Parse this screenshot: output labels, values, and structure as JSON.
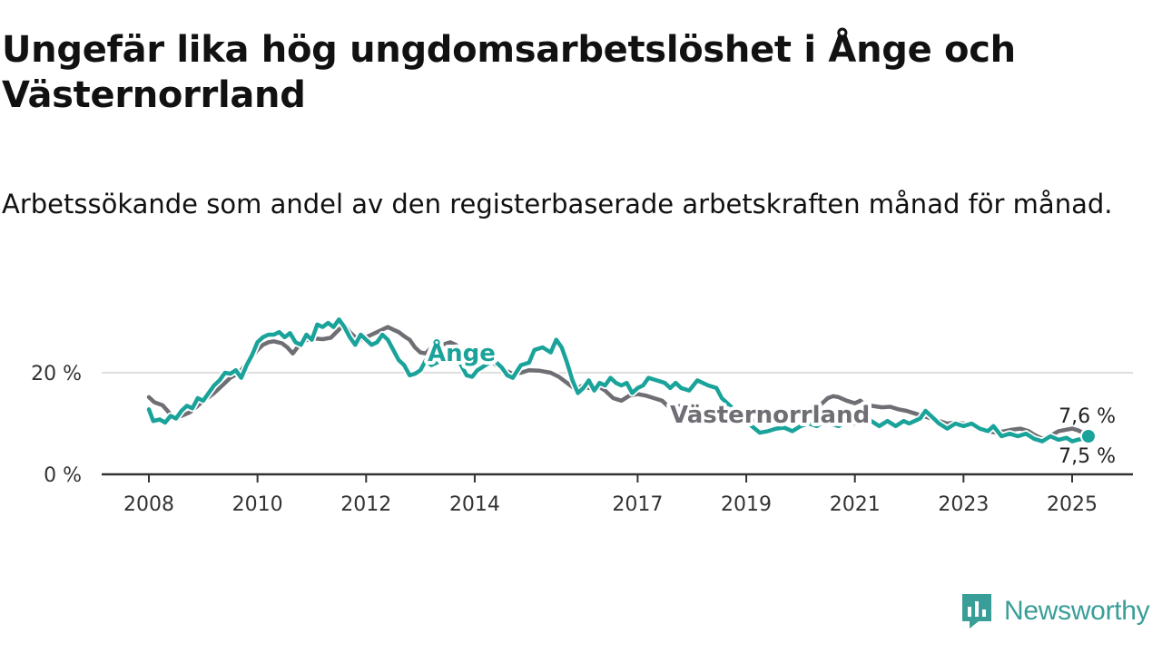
{
  "title": "Ungefär lika hög ungdomsarbetslöshet i Ånge och Västernorrland",
  "subtitle": "Arbetssökande som andel av den registerbaserade arbetskraften månad för månad.",
  "brand": {
    "name": "Newsworthy",
    "icon": "newsworthy-logo-icon",
    "color": "#3a9e98"
  },
  "chart_data": {
    "type": "line",
    "x_unit": "year",
    "y_unit": "%",
    "ylim": [
      0,
      30
    ],
    "y_ticks": [
      {
        "value": 0,
        "label": "0 %"
      },
      {
        "value": 20,
        "label": "20 %"
      }
    ],
    "x_ticks": [
      {
        "value": 2008,
        "label": "2008"
      },
      {
        "value": 2010,
        "label": "2010"
      },
      {
        "value": 2012,
        "label": "2012"
      },
      {
        "value": 2014,
        "label": "2014"
      },
      {
        "value": 2017,
        "label": "2017"
      },
      {
        "value": 2019,
        "label": "2019"
      },
      {
        "value": 2021,
        "label": "2021"
      },
      {
        "value": 2023,
        "label": "2023"
      },
      {
        "value": 2025,
        "label": "2025"
      }
    ],
    "grid": "horizontal",
    "series": [
      {
        "name": "Västernorrland",
        "color": "#6e6e74",
        "end_label": "7,6 %",
        "points": [
          [
            2008.0,
            15.2
          ],
          [
            2008.1,
            14.2
          ],
          [
            2008.25,
            13.6
          ],
          [
            2008.4,
            11.8
          ],
          [
            2008.5,
            11.2
          ],
          [
            2008.6,
            11.5
          ],
          [
            2008.75,
            12.2
          ],
          [
            2008.9,
            13.5
          ],
          [
            2009.0,
            14.5
          ],
          [
            2009.1,
            15.2
          ],
          [
            2009.2,
            16.0
          ],
          [
            2009.3,
            17.0
          ],
          [
            2009.4,
            18.0
          ],
          [
            2009.5,
            19.0
          ],
          [
            2009.6,
            19.6
          ],
          [
            2009.7,
            20.5
          ],
          [
            2009.85,
            22.5
          ],
          [
            2010.0,
            24.5
          ],
          [
            2010.1,
            25.5
          ],
          [
            2010.2,
            26.0
          ],
          [
            2010.3,
            26.2
          ],
          [
            2010.45,
            25.8
          ],
          [
            2010.55,
            25.0
          ],
          [
            2010.65,
            23.8
          ],
          [
            2010.75,
            25.2
          ],
          [
            2010.85,
            26.2
          ],
          [
            2011.0,
            26.8
          ],
          [
            2011.2,
            26.6
          ],
          [
            2011.35,
            26.9
          ],
          [
            2011.5,
            28.5
          ],
          [
            2011.6,
            29.5
          ],
          [
            2011.7,
            28.0
          ],
          [
            2011.8,
            27.0
          ],
          [
            2011.9,
            26.5
          ],
          [
            2012.0,
            27.0
          ],
          [
            2012.1,
            27.5
          ],
          [
            2012.2,
            28.0
          ],
          [
            2012.3,
            28.5
          ],
          [
            2012.4,
            29.0
          ],
          [
            2012.5,
            28.5
          ],
          [
            2012.6,
            28.0
          ],
          [
            2012.7,
            27.2
          ],
          [
            2012.8,
            26.5
          ],
          [
            2012.9,
            25.0
          ],
          [
            2013.0,
            24.0
          ],
          [
            2013.1,
            23.8
          ],
          [
            2013.2,
            25.0
          ],
          [
            2013.4,
            25.5
          ],
          [
            2013.55,
            26.0
          ],
          [
            2013.65,
            25.5
          ],
          [
            2013.75,
            24.5
          ],
          [
            2013.9,
            24.0
          ],
          [
            2014.1,
            23.5
          ],
          [
            2014.25,
            22.5
          ],
          [
            2014.4,
            21.5
          ],
          [
            2014.55,
            20.5
          ],
          [
            2014.7,
            19.8
          ],
          [
            2014.85,
            20.0
          ],
          [
            2015.0,
            20.5
          ],
          [
            2015.2,
            20.4
          ],
          [
            2015.4,
            20.0
          ],
          [
            2015.55,
            19.2
          ],
          [
            2015.7,
            18.0
          ],
          [
            2015.85,
            16.8
          ],
          [
            2016.0,
            17.5
          ],
          [
            2016.1,
            17.0
          ],
          [
            2016.25,
            17.5
          ],
          [
            2016.4,
            16.5
          ],
          [
            2016.55,
            15.0
          ],
          [
            2016.7,
            14.5
          ],
          [
            2016.85,
            15.5
          ],
          [
            2017.0,
            15.8
          ],
          [
            2017.15,
            15.5
          ],
          [
            2017.3,
            15.0
          ],
          [
            2017.45,
            14.5
          ],
          [
            2017.55,
            13.5
          ],
          [
            2017.65,
            13.2
          ],
          [
            2017.8,
            13.5
          ],
          [
            2017.95,
            13.0
          ],
          [
            2018.1,
            12.7
          ],
          [
            2018.25,
            12.3
          ],
          [
            2018.4,
            11.8
          ],
          [
            2018.55,
            11.5
          ],
          [
            2018.7,
            11.8
          ],
          [
            2018.85,
            11.4
          ],
          [
            2019.0,
            11.0
          ],
          [
            2019.2,
            10.5
          ],
          [
            2019.35,
            10.0
          ],
          [
            2019.5,
            10.2
          ],
          [
            2019.65,
            9.8
          ],
          [
            2019.8,
            10.6
          ],
          [
            2019.95,
            11.4
          ],
          [
            2020.1,
            12.2
          ],
          [
            2020.25,
            13.0
          ],
          [
            2020.4,
            14.0
          ],
          [
            2020.5,
            15.0
          ],
          [
            2020.6,
            15.4
          ],
          [
            2020.7,
            15.2
          ],
          [
            2020.85,
            14.5
          ],
          [
            2021.0,
            14.0
          ],
          [
            2021.1,
            14.5
          ],
          [
            2021.2,
            13.5
          ],
          [
            2021.3,
            13.5
          ],
          [
            2021.5,
            13.2
          ],
          [
            2021.65,
            13.3
          ],
          [
            2021.8,
            12.8
          ],
          [
            2021.95,
            12.5
          ],
          [
            2022.1,
            12.0
          ],
          [
            2022.25,
            11.5
          ],
          [
            2022.4,
            11.0
          ],
          [
            2022.55,
            10.5
          ],
          [
            2022.7,
            10.0
          ],
          [
            2022.85,
            10.2
          ],
          [
            2023.0,
            10.0
          ],
          [
            2023.15,
            9.8
          ],
          [
            2023.3,
            9.3
          ],
          [
            2023.45,
            8.5
          ],
          [
            2023.6,
            8.2
          ],
          [
            2023.75,
            8.5
          ],
          [
            2023.9,
            8.8
          ],
          [
            2024.05,
            9.0
          ],
          [
            2024.2,
            8.5
          ],
          [
            2024.3,
            7.8
          ],
          [
            2024.45,
            7.0
          ],
          [
            2024.6,
            7.6
          ],
          [
            2024.75,
            8.5
          ],
          [
            2024.9,
            8.8
          ],
          [
            2025.0,
            9.0
          ],
          [
            2025.1,
            8.7
          ],
          [
            2025.2,
            8.2
          ],
          [
            2025.3,
            7.6
          ]
        ]
      },
      {
        "name": "Ånge",
        "color": "#1aa39a",
        "end_label": "7,5 %",
        "points": [
          [
            2008.0,
            12.8
          ],
          [
            2008.08,
            10.5
          ],
          [
            2008.2,
            10.8
          ],
          [
            2008.3,
            10.2
          ],
          [
            2008.4,
            11.5
          ],
          [
            2008.5,
            11.0
          ],
          [
            2008.6,
            12.5
          ],
          [
            2008.7,
            13.5
          ],
          [
            2008.8,
            13.0
          ],
          [
            2008.9,
            15.0
          ],
          [
            2009.0,
            14.5
          ],
          [
            2009.1,
            16.0
          ],
          [
            2009.2,
            17.5
          ],
          [
            2009.3,
            18.5
          ],
          [
            2009.4,
            20.0
          ],
          [
            2009.5,
            19.8
          ],
          [
            2009.6,
            20.5
          ],
          [
            2009.7,
            19.0
          ],
          [
            2009.8,
            21.5
          ],
          [
            2009.9,
            23.5
          ],
          [
            2010.0,
            26.0
          ],
          [
            2010.1,
            27.0
          ],
          [
            2010.2,
            27.5
          ],
          [
            2010.3,
            27.5
          ],
          [
            2010.4,
            28.0
          ],
          [
            2010.5,
            27.0
          ],
          [
            2010.6,
            27.8
          ],
          [
            2010.7,
            26.0
          ],
          [
            2010.8,
            25.5
          ],
          [
            2010.9,
            27.5
          ],
          [
            2011.0,
            26.5
          ],
          [
            2011.1,
            29.5
          ],
          [
            2011.2,
            29.0
          ],
          [
            2011.3,
            29.8
          ],
          [
            2011.4,
            29.0
          ],
          [
            2011.5,
            30.5
          ],
          [
            2011.6,
            29.0
          ],
          [
            2011.7,
            27.0
          ],
          [
            2011.8,
            25.5
          ],
          [
            2011.9,
            27.5
          ],
          [
            2012.0,
            26.5
          ],
          [
            2012.1,
            25.5
          ],
          [
            2012.2,
            26.0
          ],
          [
            2012.3,
            27.5
          ],
          [
            2012.4,
            26.5
          ],
          [
            2012.5,
            24.5
          ],
          [
            2012.6,
            22.5
          ],
          [
            2012.7,
            21.5
          ],
          [
            2012.8,
            19.5
          ],
          [
            2012.9,
            19.8
          ],
          [
            2013.0,
            20.5
          ],
          [
            2013.1,
            22.5
          ],
          [
            2013.2,
            21.5
          ],
          [
            2013.3,
            22.0
          ],
          [
            2013.45,
            22.5
          ],
          [
            2013.55,
            23.2
          ],
          [
            2013.7,
            22.5
          ],
          [
            2013.85,
            19.5
          ],
          [
            2013.95,
            19.2
          ],
          [
            2014.05,
            20.5
          ],
          [
            2014.2,
            21.5
          ],
          [
            2014.35,
            22.5
          ],
          [
            2014.5,
            21.0
          ],
          [
            2014.6,
            19.5
          ],
          [
            2014.7,
            19.0
          ],
          [
            2014.85,
            21.5
          ],
          [
            2015.0,
            22.0
          ],
          [
            2015.1,
            24.5
          ],
          [
            2015.25,
            25.0
          ],
          [
            2015.4,
            24.0
          ],
          [
            2015.5,
            26.5
          ],
          [
            2015.6,
            25.0
          ],
          [
            2015.7,
            22.0
          ],
          [
            2015.8,
            18.5
          ],
          [
            2015.9,
            16.0
          ],
          [
            2016.0,
            17.0
          ],
          [
            2016.1,
            18.5
          ],
          [
            2016.2,
            16.5
          ],
          [
            2016.3,
            18.0
          ],
          [
            2016.4,
            17.5
          ],
          [
            2016.5,
            19.0
          ],
          [
            2016.6,
            18.0
          ],
          [
            2016.7,
            17.5
          ],
          [
            2016.8,
            18.0
          ],
          [
            2016.9,
            16.0
          ],
          [
            2017.0,
            17.0
          ],
          [
            2017.1,
            17.5
          ],
          [
            2017.2,
            19.0
          ],
          [
            2017.35,
            18.5
          ],
          [
            2017.5,
            18.0
          ],
          [
            2017.6,
            17.0
          ],
          [
            2017.7,
            18.0
          ],
          [
            2017.8,
            17.0
          ],
          [
            2017.95,
            16.5
          ],
          [
            2018.1,
            18.5
          ],
          [
            2018.3,
            17.5
          ],
          [
            2018.45,
            17.0
          ],
          [
            2018.55,
            15.0
          ],
          [
            2018.7,
            13.5
          ],
          [
            2018.85,
            12.0
          ],
          [
            2019.0,
            10.5
          ],
          [
            2019.1,
            9.5
          ],
          [
            2019.25,
            8.2
          ],
          [
            2019.4,
            8.5
          ],
          [
            2019.55,
            9.0
          ],
          [
            2019.7,
            9.2
          ],
          [
            2019.85,
            8.5
          ],
          [
            2020.0,
            9.5
          ],
          [
            2020.15,
            10.0
          ],
          [
            2020.3,
            9.5
          ],
          [
            2020.45,
            10.5
          ],
          [
            2020.55,
            10.0
          ],
          [
            2020.7,
            9.5
          ],
          [
            2020.85,
            10.5
          ],
          [
            2021.0,
            10.0
          ],
          [
            2021.15,
            11.0
          ],
          [
            2021.3,
            10.5
          ],
          [
            2021.45,
            9.5
          ],
          [
            2021.6,
            10.5
          ],
          [
            2021.75,
            9.5
          ],
          [
            2021.9,
            10.5
          ],
          [
            2022.0,
            10.0
          ],
          [
            2022.1,
            10.5
          ],
          [
            2022.2,
            11.0
          ],
          [
            2022.3,
            12.5
          ],
          [
            2022.45,
            11.0
          ],
          [
            2022.55,
            10.0
          ],
          [
            2022.7,
            9.0
          ],
          [
            2022.85,
            10.0
          ],
          [
            2023.0,
            9.5
          ],
          [
            2023.15,
            10.0
          ],
          [
            2023.3,
            9.0
          ],
          [
            2023.45,
            8.5
          ],
          [
            2023.55,
            9.5
          ],
          [
            2023.7,
            7.5
          ],
          [
            2023.85,
            8.0
          ],
          [
            2024.0,
            7.5
          ],
          [
            2024.15,
            8.0
          ],
          [
            2024.3,
            7.0
          ],
          [
            2024.45,
            6.5
          ],
          [
            2024.6,
            7.5
          ],
          [
            2024.75,
            6.8
          ],
          [
            2024.9,
            7.2
          ],
          [
            2025.0,
            6.5
          ],
          [
            2025.1,
            6.8
          ],
          [
            2025.2,
            7.0
          ],
          [
            2025.3,
            7.5
          ]
        ]
      }
    ]
  }
}
